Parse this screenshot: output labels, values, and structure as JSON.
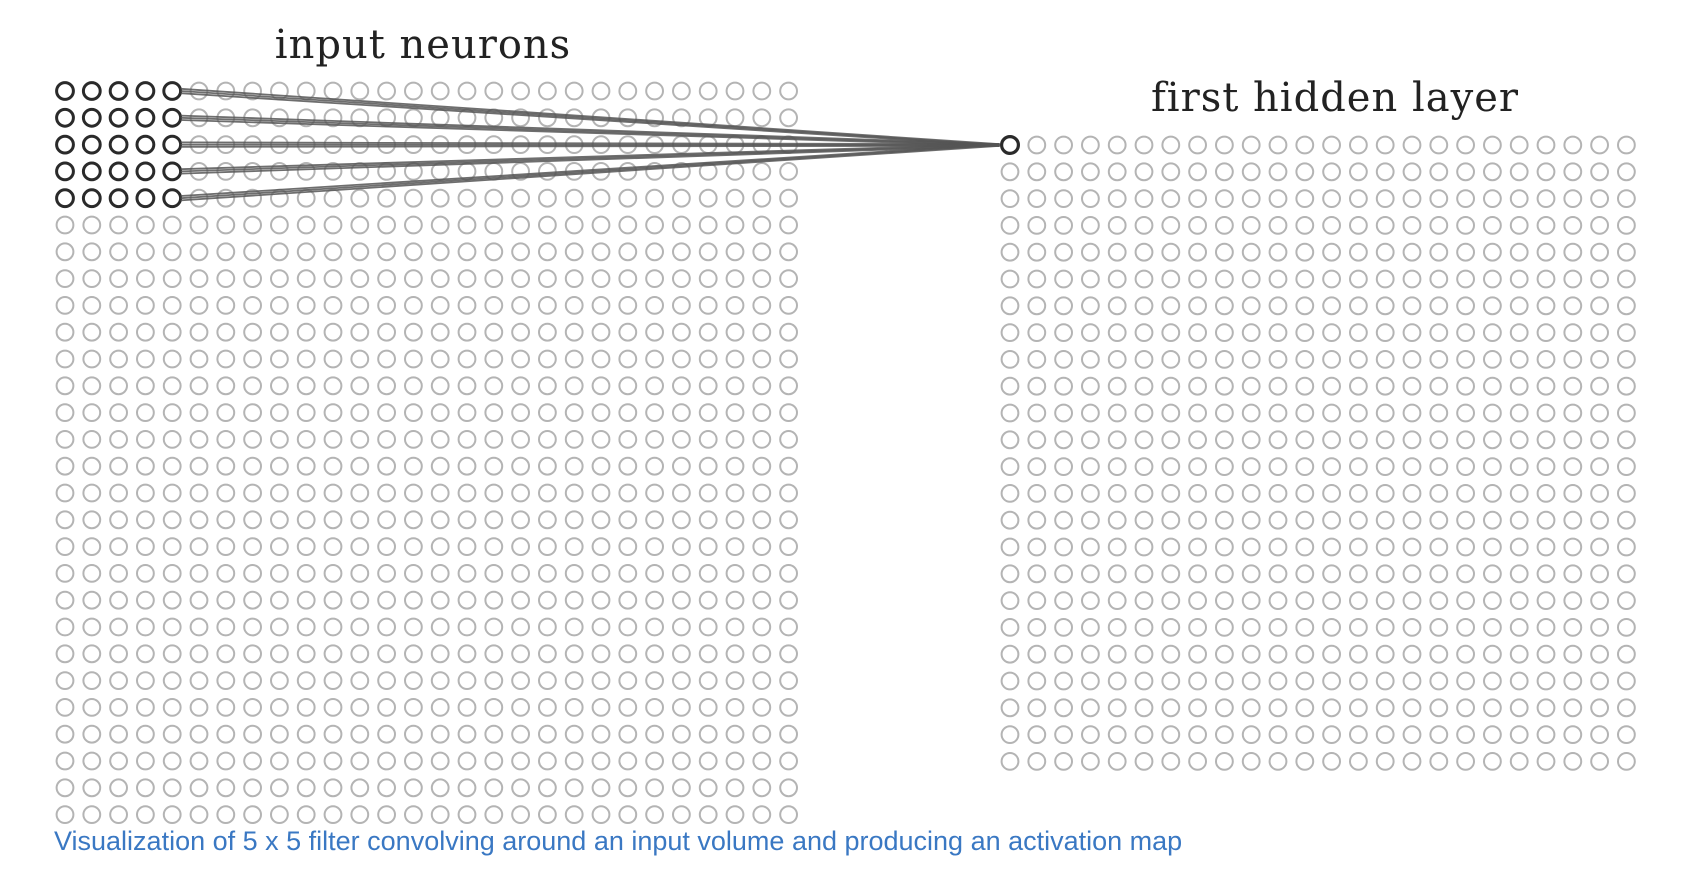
{
  "input_layer": {
    "title": "input neurons",
    "rows": 28,
    "cols": 28,
    "neuron_color": "#b4b4b4",
    "receptive_field": {
      "rows": 5,
      "cols": 5,
      "color": "#2a2a2a"
    }
  },
  "hidden_layer": {
    "title": "first hidden layer",
    "rows": 24,
    "cols": 24,
    "neuron_color": "#b4b4b4",
    "highlighted_neuron": {
      "row": 0,
      "col": 0,
      "color": "#2a2a2a"
    }
  },
  "connections": {
    "color": "#555555"
  },
  "caption": "Visualization of 5 x 5 filter convolving around an input volume and producing an activation map"
}
